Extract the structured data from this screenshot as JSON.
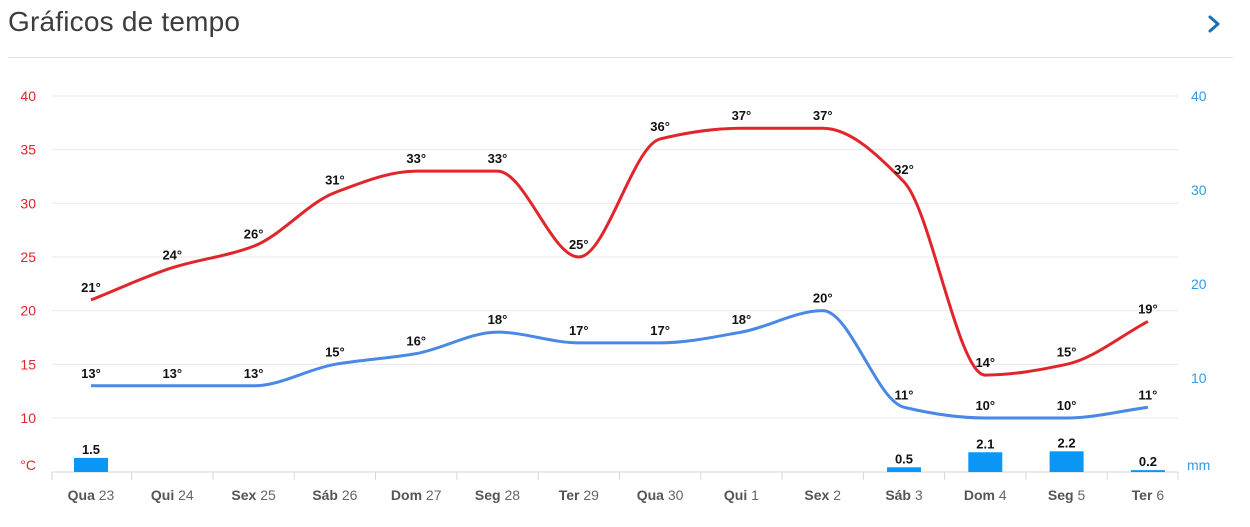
{
  "header": {
    "title": "Gráficos de tempo",
    "next_icon": "chevron-right-icon"
  },
  "colors": {
    "max_line": "#e0262b",
    "min_line": "#4a88e6",
    "precip_bar": "#0b96f5",
    "left_axis_text": "#e0262b",
    "right_axis_text": "#2f9be6",
    "grid": "#e9e9e9"
  },
  "chart_data": {
    "type": "line",
    "categories": [
      "Qua 23",
      "Qui 24",
      "Sex 25",
      "Sáb 26",
      "Dom 27",
      "Seg 28",
      "Ter 29",
      "Qua 30",
      "Qui 1",
      "Sex 2",
      "Sáb 3",
      "Dom 4",
      "Seg 5",
      "Ter 6"
    ],
    "category_parts": [
      [
        "Qua",
        "23"
      ],
      [
        "Qui",
        "24"
      ],
      [
        "Sex",
        "25"
      ],
      [
        "Sáb",
        "26"
      ],
      [
        "Dom",
        "27"
      ],
      [
        "Seg",
        "28"
      ],
      [
        "Ter",
        "29"
      ],
      [
        "Qua",
        "30"
      ],
      [
        "Qui",
        "1"
      ],
      [
        "Sex",
        "2"
      ],
      [
        "Sáb",
        "3"
      ],
      [
        "Dom",
        "4"
      ],
      [
        "Seg",
        "5"
      ],
      [
        "Ter",
        "6"
      ]
    ],
    "series": [
      {
        "axis": "left",
        "values": [
          21,
          24,
          26,
          31,
          33,
          33,
          25,
          36,
          37,
          37,
          32,
          14,
          15,
          19
        ],
        "labels": [
          "21°",
          "24°",
          "26°",
          "31°",
          "33°",
          "33°",
          "25°",
          "36°",
          "37°",
          "37°",
          "32°",
          "14°",
          "15°",
          "19°"
        ]
      },
      {
        "axis": "left",
        "values": [
          13,
          13,
          13,
          15,
          16,
          18,
          17,
          17,
          18,
          20,
          11,
          10,
          10,
          11
        ],
        "labels": [
          "13°",
          "13°",
          "13°",
          "15°",
          "16°",
          "18°",
          "17°",
          "17°",
          "18°",
          "20°",
          "11°",
          "10°",
          "10°",
          "11°"
        ]
      },
      {
        "axis": "right",
        "type": "bar",
        "values": [
          1.5,
          null,
          null,
          null,
          null,
          null,
          null,
          null,
          null,
          null,
          0.5,
          2.1,
          2.2,
          0.2
        ],
        "labels": [
          "1.5",
          "",
          "",
          "",
          "",
          "",
          "",
          "",
          "",
          "",
          "0.5",
          "2.1",
          "2.2",
          "0.2"
        ]
      }
    ],
    "left_axis": {
      "ticks": [
        "40",
        "35",
        "30",
        "25",
        "20",
        "15",
        "10"
      ],
      "unit": "°C",
      "ylim": [
        5,
        40
      ]
    },
    "right_axis": {
      "ticks": [
        "40",
        "30",
        "20",
        "10"
      ],
      "unit": "mm",
      "ylim": [
        0,
        40
      ]
    },
    "grid": true
  }
}
